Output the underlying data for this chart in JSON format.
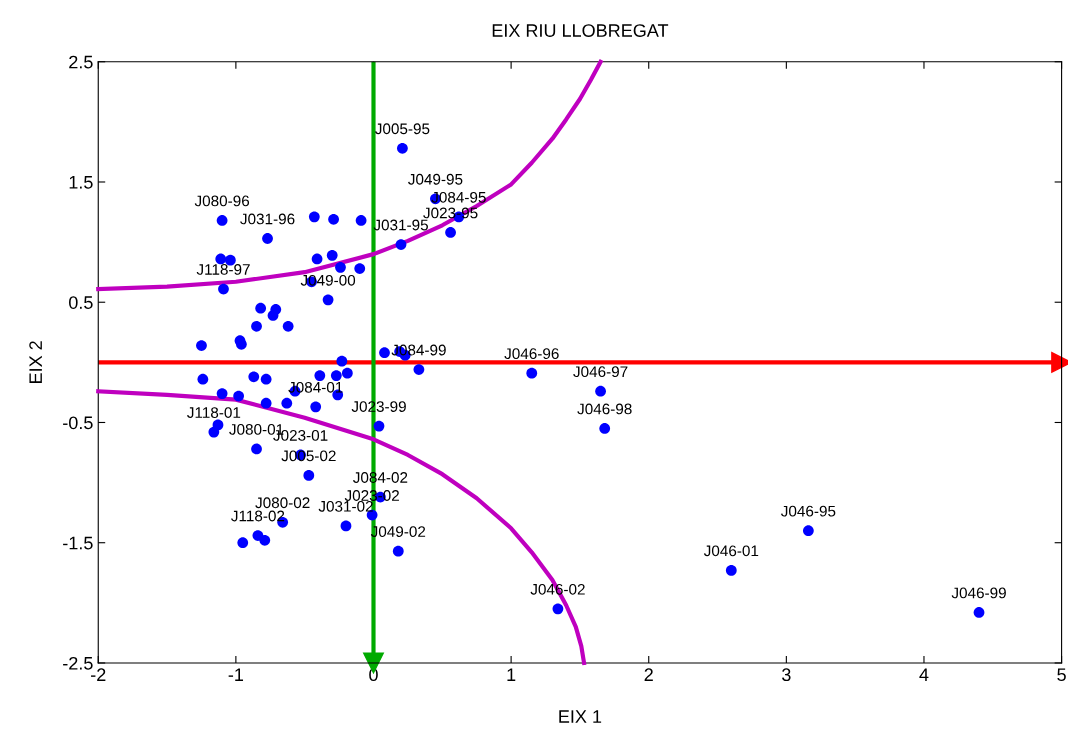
{
  "chart_data": {
    "type": "scatter",
    "title": "EIX RIU LLOBREGAT",
    "xlabel": "EIX 1",
    "ylabel": "EIX 2",
    "xlim": [
      -2,
      5
    ],
    "xticks": [
      -2,
      -1,
      0,
      1,
      2,
      3,
      4,
      5
    ],
    "ylim": [
      -2.5,
      2.5
    ],
    "yticks": [
      -2.5,
      -1.5,
      -0.5,
      0.5,
      1.5,
      2.5
    ],
    "grid": false,
    "legend": false,
    "marker": "circle",
    "series": [
      {
        "color": "#0000ff",
        "x": [
          0.21,
          0.45,
          0.62,
          0.56,
          0.2,
          1.15,
          1.65,
          1.68,
          3.16,
          2.6,
          4.4,
          1.34,
          0.18,
          0.05,
          -0.01,
          -0.2,
          -0.66,
          -0.95,
          -0.84,
          -0.79,
          -0.53,
          -0.85,
          -0.47,
          0.04,
          -1.16,
          -1.13,
          0.33,
          0.08,
          0.19,
          0.23,
          -1.1,
          -0.77,
          -0.43,
          -0.29,
          -0.09,
          -1.11,
          -1.04,
          -0.41,
          -0.3,
          -0.24,
          -0.1,
          -1.09,
          -0.45,
          -0.33,
          -0.85,
          -0.62,
          -0.97,
          -0.96,
          -0.71,
          -0.82,
          -0.73,
          -1.25,
          -1.24,
          -1.1,
          -0.98,
          -0.78,
          -0.87,
          -0.78,
          -0.63,
          -0.57,
          -0.42,
          -0.26,
          -0.39,
          -0.27,
          -0.19,
          -0.23
        ],
        "values": [
          1.78,
          1.36,
          1.21,
          1.08,
          0.98,
          -0.09,
          -0.24,
          -0.55,
          -1.4,
          -1.73,
          -2.08,
          -2.05,
          -1.57,
          -1.12,
          -1.27,
          -1.36,
          -1.33,
          -1.5,
          -1.44,
          -1.48,
          -0.77,
          -0.72,
          -0.94,
          -0.53,
          -0.58,
          -0.52,
          -0.06,
          0.08,
          0.09,
          0.06,
          1.18,
          1.03,
          1.21,
          1.19,
          1.18,
          0.86,
          0.85,
          0.86,
          0.89,
          0.79,
          0.78,
          0.61,
          0.67,
          0.52,
          0.3,
          0.3,
          0.18,
          0.15,
          0.44,
          0.45,
          0.39,
          0.14,
          -0.14,
          -0.26,
          -0.28,
          -0.34,
          -0.12,
          -0.14,
          -0.34,
          -0.24,
          -0.37,
          -0.27,
          -0.11,
          -0.11,
          -0.09,
          0.01
        ]
      },
      {
        "type": "line",
        "marker": "none",
        "color": "#bf00bf",
        "x": [
          -2,
          -1.5,
          -1,
          -0.5,
          0,
          0.25,
          0.5,
          0.75,
          1,
          1.15,
          1.3,
          1.4,
          1.5,
          1.58,
          1.65
        ],
        "values": [
          0.61,
          0.63,
          0.67,
          0.75,
          0.9,
          1.01,
          1.14,
          1.3,
          1.48,
          1.66,
          1.86,
          2.02,
          2.19,
          2.35,
          2.5
        ]
      },
      {
        "type": "line",
        "marker": "none",
        "color": "#bf00bf",
        "x": [
          -2,
          -1.5,
          -1,
          -0.5,
          0,
          0.25,
          0.5,
          0.75,
          1,
          1.15,
          1.3,
          1.4,
          1.47,
          1.51,
          1.53
        ],
        "values": [
          -0.24,
          -0.27,
          -0.31,
          -0.46,
          -0.64,
          -0.77,
          -0.93,
          -1.13,
          -1.38,
          -1.58,
          -1.81,
          -2.02,
          -2.2,
          -2.36,
          -2.5
        ]
      }
    ],
    "ref_lines": [
      {
        "axis": "y",
        "value": 0,
        "color": "#ff0000"
      },
      {
        "axis": "x",
        "value": 0,
        "color": "#00aa00"
      }
    ],
    "annotations": [
      {
        "text": "J005-95",
        "x": 0.21,
        "y": 1.78
      },
      {
        "text": "J049-95",
        "x": 0.45,
        "y": 1.36
      },
      {
        "text": "J084-95",
        "x": 0.62,
        "y": 1.21
      },
      {
        "text": "J023-95",
        "x": 0.56,
        "y": 1.08
      },
      {
        "text": "J031-95",
        "x": 0.2,
        "y": 0.98
      },
      {
        "text": "J046-96",
        "x": 1.15,
        "y": -0.09
      },
      {
        "text": "J046-97",
        "x": 1.65,
        "y": -0.24
      },
      {
        "text": "J046-98",
        "x": 1.68,
        "y": -0.55
      },
      {
        "text": "J046-95",
        "x": 3.16,
        "y": -1.4
      },
      {
        "text": "J046-01",
        "x": 2.6,
        "y": -1.73
      },
      {
        "text": "J046-99",
        "x": 4.4,
        "y": -2.08
      },
      {
        "text": "J046-02",
        "x": 1.34,
        "y": -2.05
      },
      {
        "text": "J049-02",
        "x": 0.18,
        "y": -1.57
      },
      {
        "text": "J084-02",
        "x": 0.05,
        "y": -1.12
      },
      {
        "text": "J023-02",
        "x": -0.01,
        "y": -1.27
      },
      {
        "text": "J031-02",
        "x": -0.2,
        "y": -1.36
      },
      {
        "text": "J080-02",
        "x": -0.66,
        "y": -1.33
      },
      {
        "text": "J118-02",
        "x": -0.84,
        "y": -1.44
      },
      {
        "text": "J023-01",
        "x": -0.53,
        "y": -0.77
      },
      {
        "text": "J080-01",
        "x": -0.85,
        "y": -0.72
      },
      {
        "text": "J005-02",
        "x": -0.47,
        "y": -0.94
      },
      {
        "text": "J023-99",
        "x": 0.04,
        "y": -0.53
      },
      {
        "text": "J118-01",
        "x": -1.16,
        "y": -0.58
      },
      {
        "text": "J084-99",
        "x": 0.33,
        "y": -0.06
      },
      {
        "text": "J080-96",
        "x": -1.1,
        "y": 1.18
      },
      {
        "text": "J031-96",
        "x": -0.77,
        "y": 1.03
      },
      {
        "text": "J118-97",
        "x": -1.09,
        "y": 0.61
      },
      {
        "text": "J049-00",
        "x": -0.33,
        "y": 0.52
      },
      {
        "text": "J084-01",
        "x": -0.42,
        "y": -0.37
      }
    ]
  }
}
